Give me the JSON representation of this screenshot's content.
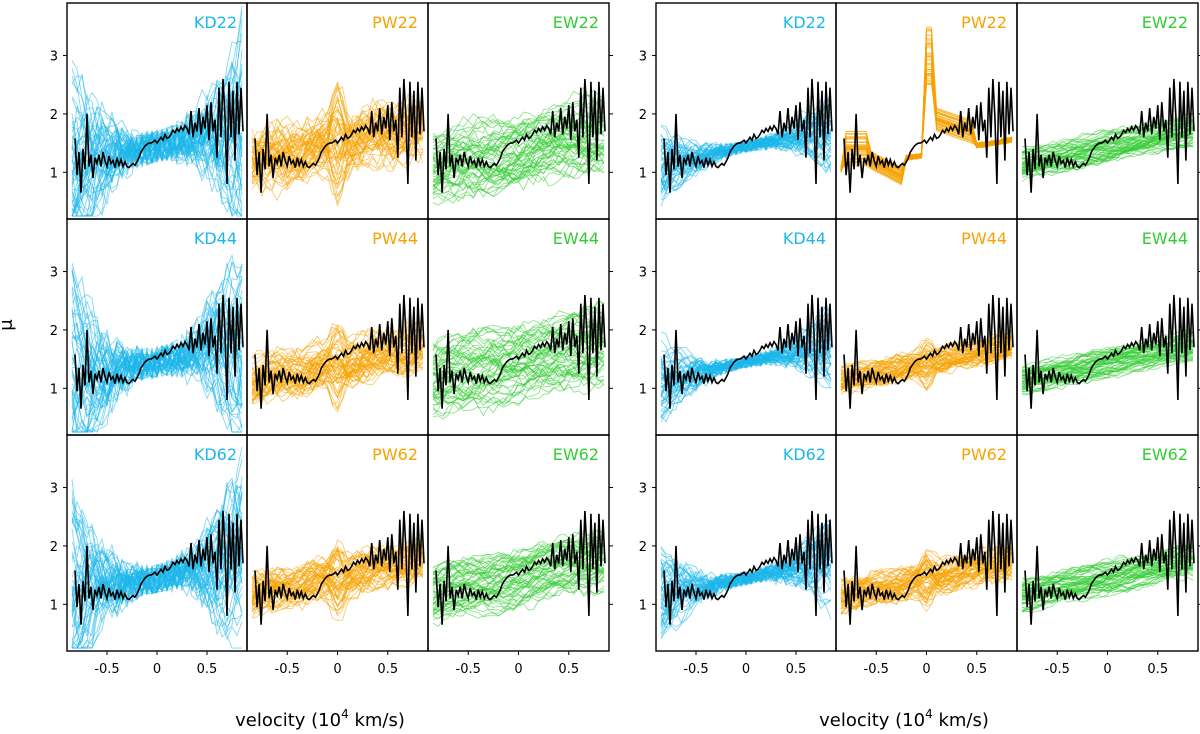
{
  "chart_data": [
    {
      "type": "line",
      "title": "",
      "xlabel": "velocity (10^4 km/s)",
      "ylabel": "μ",
      "xlim": [
        -0.9,
        0.9
      ],
      "ylim": [
        0.2,
        3.9
      ],
      "xticks": [
        -0.5,
        0,
        0.5
      ],
      "xtick_labels": [
        "-0.5",
        "0",
        "0.5"
      ],
      "yticks": [
        1,
        2,
        3
      ],
      "ytick_labels": [
        "1",
        "2",
        "3"
      ],
      "observed_series": {
        "name": "observed",
        "color": "#000000",
        "x": [
          -0.82,
          -0.8,
          -0.78,
          -0.76,
          -0.74,
          -0.72,
          -0.7,
          -0.68,
          -0.66,
          -0.64,
          -0.62,
          -0.6,
          -0.58,
          -0.56,
          -0.54,
          -0.52,
          -0.5,
          -0.48,
          -0.46,
          -0.44,
          -0.42,
          -0.4,
          -0.38,
          -0.36,
          -0.34,
          -0.32,
          -0.3,
          -0.28,
          -0.26,
          -0.24,
          -0.22,
          -0.2,
          -0.18,
          -0.16,
          -0.14,
          -0.12,
          -0.1,
          -0.08,
          -0.06,
          -0.04,
          -0.02,
          0.0,
          0.02,
          0.04,
          0.06,
          0.08,
          0.1,
          0.12,
          0.14,
          0.16,
          0.18,
          0.2,
          0.22,
          0.24,
          0.26,
          0.28,
          0.3,
          0.32,
          0.34,
          0.36,
          0.38,
          0.4,
          0.42,
          0.44,
          0.46,
          0.48,
          0.5,
          0.52,
          0.54,
          0.56,
          0.58,
          0.6,
          0.62,
          0.64,
          0.66,
          0.68,
          0.7,
          0.72,
          0.74,
          0.76,
          0.78,
          0.8,
          0.82,
          0.84,
          0.86
        ],
        "y": [
          1.58,
          0.95,
          1.35,
          0.65,
          1.4,
          1.05,
          2.0,
          1.1,
          1.3,
          0.9,
          1.25,
          1.15,
          1.3,
          1.1,
          1.35,
          1.2,
          1.1,
          1.28,
          1.15,
          1.2,
          1.08,
          1.25,
          1.12,
          1.22,
          1.1,
          1.18,
          1.1,
          1.08,
          1.12,
          1.15,
          1.12,
          1.18,
          1.25,
          1.35,
          1.4,
          1.45,
          1.48,
          1.5,
          1.5,
          1.52,
          1.55,
          1.5,
          1.55,
          1.6,
          1.55,
          1.65,
          1.58,
          1.6,
          1.65,
          1.72,
          1.68,
          1.75,
          1.7,
          1.78,
          1.72,
          1.8,
          1.75,
          1.65,
          2.05,
          1.6,
          1.85,
          1.7,
          2.1,
          1.65,
          1.95,
          1.75,
          2.15,
          1.55,
          2.2,
          1.7,
          1.9,
          1.25,
          2.45,
          1.6,
          2.6,
          1.95,
          0.8,
          2.55,
          1.6,
          2.4,
          1.2,
          2.55,
          1.65,
          2.45,
          1.7
        ]
      },
      "groups": [
        {
          "side": "left",
          "row": 0,
          "col": 0,
          "label": "KD22",
          "color": "#1BB7EA",
          "family": "KD",
          "spread": 0.95
        },
        {
          "side": "left",
          "row": 0,
          "col": 1,
          "label": "PW22",
          "color": "#F5A300",
          "family": "PW",
          "spread": 0.55
        },
        {
          "side": "left",
          "row": 0,
          "col": 2,
          "label": "EW22",
          "color": "#33CC33",
          "family": "EW",
          "spread": 0.45
        },
        {
          "side": "left",
          "row": 1,
          "col": 0,
          "label": "KD44",
          "color": "#1BB7EA",
          "family": "KD",
          "spread": 0.9
        },
        {
          "side": "left",
          "row": 1,
          "col": 1,
          "label": "PW44",
          "color": "#F5A300",
          "family": "PW",
          "spread": 0.4
        },
        {
          "side": "left",
          "row": 1,
          "col": 2,
          "label": "EW44",
          "color": "#33CC33",
          "family": "EW",
          "spread": 0.45
        },
        {
          "side": "left",
          "row": 2,
          "col": 0,
          "label": "KD62",
          "color": "#1BB7EA",
          "family": "KD",
          "spread": 0.85
        },
        {
          "side": "left",
          "row": 2,
          "col": 1,
          "label": "PW62",
          "color": "#F5A300",
          "family": "PW",
          "spread": 0.35
        },
        {
          "side": "left",
          "row": 2,
          "col": 2,
          "label": "EW62",
          "color": "#33CC33",
          "family": "EW",
          "spread": 0.35
        },
        {
          "side": "right",
          "row": 0,
          "col": 0,
          "label": "KD22",
          "color": "#1BB7EA",
          "family": "KD",
          "spread": 0.35
        },
        {
          "side": "right",
          "row": 0,
          "col": 1,
          "label": "PW22",
          "color": "#F5A300",
          "family": "PW-spike",
          "spread": 0.1
        },
        {
          "side": "right",
          "row": 0,
          "col": 2,
          "label": "EW22",
          "color": "#33CC33",
          "family": "EW",
          "spread": 0.18
        },
        {
          "side": "right",
          "row": 1,
          "col": 0,
          "label": "KD44",
          "color": "#1BB7EA",
          "family": "KD",
          "spread": 0.35
        },
        {
          "side": "right",
          "row": 1,
          "col": 1,
          "label": "PW44",
          "color": "#F5A300",
          "family": "PW",
          "spread": 0.22
        },
        {
          "side": "right",
          "row": 1,
          "col": 2,
          "label": "EW44",
          "color": "#33CC33",
          "family": "EW",
          "spread": 0.18
        },
        {
          "side": "right",
          "row": 2,
          "col": 0,
          "label": "KD62",
          "color": "#1BB7EA",
          "family": "KD",
          "spread": 0.4
        },
        {
          "side": "right",
          "row": 2,
          "col": 1,
          "label": "PW62",
          "color": "#F5A300",
          "family": "PW",
          "spread": 0.28
        },
        {
          "side": "right",
          "row": 2,
          "col": 2,
          "label": "EW62",
          "color": "#33CC33",
          "family": "EW",
          "spread": 0.2
        }
      ]
    }
  ],
  "labels": {
    "ylabel": "μ",
    "xlabel_left_main": "velocity (10",
    "xlabel_exp": "4",
    "xlabel_left_tail": " km/s)",
    "xlabel_right_main": "velocity (10",
    "xlabel_right_tail": " km/s)"
  }
}
